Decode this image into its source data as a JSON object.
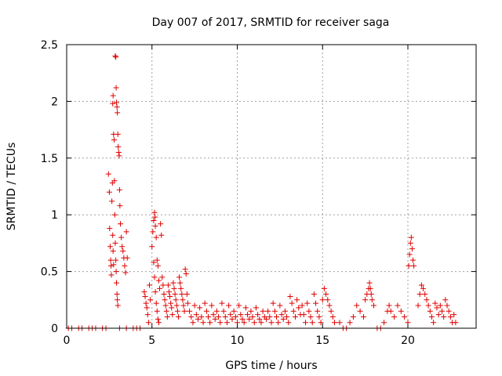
{
  "chart_data": {
    "type": "scatter",
    "title": "Day 007 of 2017, SRMTID for receiver saga",
    "xlabel": "GPS time / hours",
    "ylabel": "SRMTID / TECUs",
    "xlim": [
      0,
      24
    ],
    "ylim": [
      0,
      2.5
    ],
    "xticks": [
      0,
      5,
      10,
      15,
      20
    ],
    "yticks": [
      0,
      0.5,
      1,
      1.5,
      2,
      2.5
    ],
    "xtick_labels": [
      "0",
      "5",
      "10",
      "15",
      "20"
    ],
    "ytick_labels": [
      "0",
      "0.5",
      "1",
      "1.5",
      "2",
      "2.5"
    ],
    "grid": true,
    "marker": "plus",
    "series": [
      {
        "color": "#e00000",
        "points": [
          [
            0.1,
            0
          ],
          [
            0.3,
            0
          ],
          [
            0.7,
            0
          ],
          [
            0.9,
            0
          ],
          [
            1.3,
            0
          ],
          [
            1.5,
            0
          ],
          [
            1.7,
            0
          ],
          [
            2.1,
            0
          ],
          [
            2.3,
            0
          ],
          [
            3.1,
            0
          ],
          [
            3.5,
            0
          ],
          [
            3.9,
            0
          ],
          [
            4.1,
            0
          ],
          [
            4.3,
            0
          ],
          [
            2.45,
            1.36
          ],
          [
            2.5,
            1.2
          ],
          [
            2.52,
            0.88
          ],
          [
            2.55,
            0.72
          ],
          [
            2.58,
            0.6
          ],
          [
            2.6,
            0.55
          ],
          [
            2.62,
            0.47
          ],
          [
            2.65,
            1.12
          ],
          [
            2.68,
            1.28
          ],
          [
            2.7,
            0.82
          ],
          [
            2.72,
            0.68
          ],
          [
            2.75,
            0.56
          ],
          [
            2.7,
            1.98
          ],
          [
            2.72,
            2.05
          ],
          [
            2.75,
            1.71
          ],
          [
            2.78,
            1.66
          ],
          [
            2.8,
            1.3
          ],
          [
            2.82,
            1.0
          ],
          [
            2.85,
            0.75
          ],
          [
            2.88,
            0.6
          ],
          [
            2.9,
            0.5
          ],
          [
            2.92,
            0.4
          ],
          [
            2.95,
            0.3
          ],
          [
            2.97,
            0.25
          ],
          [
            3.0,
            0.2
          ],
          [
            2.85,
            2.4
          ],
          [
            2.88,
            2.39
          ],
          [
            2.9,
            2.12
          ],
          [
            2.92,
            1.99
          ],
          [
            2.95,
            1.95
          ],
          [
            2.97,
            1.9
          ],
          [
            3.0,
            1.71
          ],
          [
            3.02,
            1.6
          ],
          [
            3.05,
            1.55
          ],
          [
            3.08,
            1.52
          ],
          [
            3.1,
            1.22
          ],
          [
            3.12,
            1.08
          ],
          [
            3.15,
            0.92
          ],
          [
            3.2,
            0.8
          ],
          [
            3.25,
            0.72
          ],
          [
            3.3,
            0.68
          ],
          [
            3.35,
            0.62
          ],
          [
            3.4,
            0.55
          ],
          [
            3.45,
            0.49
          ],
          [
            3.5,
            0.85
          ],
          [
            3.55,
            0.62
          ],
          [
            4.55,
            0.32
          ],
          [
            4.6,
            0.28
          ],
          [
            4.65,
            0.22
          ],
          [
            4.7,
            0.18
          ],
          [
            4.75,
            0.12
          ],
          [
            4.8,
            0.05
          ],
          [
            4.85,
            0.38
          ],
          [
            4.9,
            0.25
          ],
          [
            5.0,
            0.72
          ],
          [
            5.05,
            0.85
          ],
          [
            5.1,
            0.95
          ],
          [
            5.15,
            1.02
          ],
          [
            5.18,
            0.98
          ],
          [
            5.2,
            0.9
          ],
          [
            5.25,
            0.8
          ],
          [
            5.3,
            0.6
          ],
          [
            5.35,
            0.55
          ],
          [
            5.4,
            0.42
          ],
          [
            5.45,
            0.35
          ],
          [
            5.5,
            0.92
          ],
          [
            5.55,
            0.82
          ],
          [
            5.1,
            0.58
          ],
          [
            5.15,
            0.45
          ],
          [
            5.2,
            0.32
          ],
          [
            5.25,
            0.22
          ],
          [
            5.3,
            0.15
          ],
          [
            5.35,
            0.08
          ],
          [
            5.4,
            0.05
          ],
          [
            5.6,
            0.45
          ],
          [
            5.65,
            0.38
          ],
          [
            5.7,
            0.3
          ],
          [
            5.75,
            0.25
          ],
          [
            5.8,
            0.2
          ],
          [
            5.85,
            0.15
          ],
          [
            5.9,
            0.1
          ],
          [
            5.95,
            0.38
          ],
          [
            6.0,
            0.32
          ],
          [
            6.05,
            0.28
          ],
          [
            6.1,
            0.22
          ],
          [
            6.15,
            0.18
          ],
          [
            6.2,
            0.12
          ],
          [
            6.25,
            0.4
          ],
          [
            6.3,
            0.35
          ],
          [
            6.35,
            0.3
          ],
          [
            6.4,
            0.25
          ],
          [
            6.45,
            0.2
          ],
          [
            6.5,
            0.15
          ],
          [
            6.55,
            0.1
          ],
          [
            6.6,
            0.45
          ],
          [
            6.65,
            0.4
          ],
          [
            6.7,
            0.35
          ],
          [
            6.75,
            0.3
          ],
          [
            6.8,
            0.25
          ],
          [
            6.85,
            0.2
          ],
          [
            6.9,
            0.15
          ],
          [
            6.95,
            0.52
          ],
          [
            7.0,
            0.48
          ],
          [
            7.05,
            0.3
          ],
          [
            7.1,
            0.22
          ],
          [
            7.2,
            0.15
          ],
          [
            7.3,
            0.1
          ],
          [
            7.4,
            0.05
          ],
          [
            7.5,
            0.2
          ],
          [
            7.6,
            0.12
          ],
          [
            7.7,
            0.08
          ],
          [
            7.8,
            0.18
          ],
          [
            7.9,
            0.1
          ],
          [
            8.0,
            0.05
          ],
          [
            8.1,
            0.22
          ],
          [
            8.2,
            0.15
          ],
          [
            8.3,
            0.1
          ],
          [
            8.4,
            0.05
          ],
          [
            8.5,
            0.2
          ],
          [
            8.6,
            0.12
          ],
          [
            8.7,
            0.08
          ],
          [
            8.8,
            0.15
          ],
          [
            8.9,
            0.1
          ],
          [
            9.0,
            0.05
          ],
          [
            9.1,
            0.22
          ],
          [
            9.2,
            0.15
          ],
          [
            9.3,
            0.1
          ],
          [
            9.4,
            0.05
          ],
          [
            9.5,
            0.2
          ],
          [
            9.6,
            0.12
          ],
          [
            9.7,
            0.08
          ],
          [
            9.8,
            0.15
          ],
          [
            9.9,
            0.1
          ],
          [
            10.0,
            0.05
          ],
          [
            10.1,
            0.2
          ],
          [
            10.2,
            0.12
          ],
          [
            10.3,
            0.08
          ],
          [
            10.4,
            0.05
          ],
          [
            10.5,
            0.18
          ],
          [
            10.6,
            0.12
          ],
          [
            10.7,
            0.08
          ],
          [
            10.8,
            0.15
          ],
          [
            10.9,
            0.1
          ],
          [
            11.0,
            0.05
          ],
          [
            11.1,
            0.18
          ],
          [
            11.2,
            0.12
          ],
          [
            11.3,
            0.08
          ],
          [
            11.4,
            0.05
          ],
          [
            11.5,
            0.15
          ],
          [
            11.6,
            0.1
          ],
          [
            11.7,
            0.08
          ],
          [
            11.8,
            0.15
          ],
          [
            11.9,
            0.1
          ],
          [
            12.0,
            0.05
          ],
          [
            12.1,
            0.22
          ],
          [
            12.2,
            0.15
          ],
          [
            12.3,
            0.1
          ],
          [
            12.4,
            0.05
          ],
          [
            12.5,
            0.2
          ],
          [
            12.6,
            0.12
          ],
          [
            12.7,
            0.08
          ],
          [
            12.8,
            0.15
          ],
          [
            12.9,
            0.1
          ],
          [
            13.0,
            0.05
          ],
          [
            13.1,
            0.28
          ],
          [
            13.2,
            0.22
          ],
          [
            13.3,
            0.15
          ],
          [
            13.4,
            0.1
          ],
          [
            13.5,
            0.25
          ],
          [
            13.6,
            0.18
          ],
          [
            13.7,
            0.12
          ],
          [
            13.8,
            0.2
          ],
          [
            13.9,
            0.12
          ],
          [
            14.0,
            0.05
          ],
          [
            14.1,
            0.22
          ],
          [
            14.2,
            0.15
          ],
          [
            14.3,
            0.1
          ],
          [
            14.4,
            0.05
          ],
          [
            14.5,
            0.3
          ],
          [
            14.6,
            0.22
          ],
          [
            14.7,
            0.15
          ],
          [
            14.8,
            0.1
          ],
          [
            14.9,
            0.05
          ],
          [
            15.0,
            0.25
          ],
          [
            15.1,
            0.35
          ],
          [
            15.2,
            0.3
          ],
          [
            15.3,
            0.25
          ],
          [
            15.4,
            0.2
          ],
          [
            15.5,
            0.15
          ],
          [
            15.6,
            0.1
          ],
          [
            15.7,
            0.05
          ],
          [
            16.0,
            0.05
          ],
          [
            16.2,
            0
          ],
          [
            16.4,
            0
          ],
          [
            16.6,
            0.05
          ],
          [
            16.8,
            0.1
          ],
          [
            17.0,
            0.2
          ],
          [
            17.2,
            0.15
          ],
          [
            17.4,
            0.1
          ],
          [
            17.5,
            0.25
          ],
          [
            17.6,
            0.3
          ],
          [
            17.7,
            0.35
          ],
          [
            17.75,
            0.4
          ],
          [
            17.8,
            0.35
          ],
          [
            17.85,
            0.3
          ],
          [
            17.9,
            0.25
          ],
          [
            18.0,
            0.2
          ],
          [
            18.2,
            0
          ],
          [
            18.4,
            0
          ],
          [
            18.6,
            0.05
          ],
          [
            18.8,
            0.15
          ],
          [
            18.9,
            0.2
          ],
          [
            19.0,
            0.15
          ],
          [
            19.2,
            0.1
          ],
          [
            19.4,
            0.2
          ],
          [
            19.6,
            0.15
          ],
          [
            19.8,
            0.1
          ],
          [
            20.0,
            0.05
          ],
          [
            20.05,
            0.55
          ],
          [
            20.1,
            0.65
          ],
          [
            20.15,
            0.75
          ],
          [
            20.2,
            0.8
          ],
          [
            20.25,
            0.7
          ],
          [
            20.3,
            0.6
          ],
          [
            20.35,
            0.55
          ],
          [
            20.6,
            0.2
          ],
          [
            20.7,
            0.3
          ],
          [
            20.8,
            0.38
          ],
          [
            20.9,
            0.35
          ],
          [
            21.0,
            0.3
          ],
          [
            21.1,
            0.25
          ],
          [
            21.2,
            0.2
          ],
          [
            21.3,
            0.15
          ],
          [
            21.4,
            0.1
          ],
          [
            21.5,
            0.05
          ],
          [
            21.6,
            0.22
          ],
          [
            21.7,
            0.18
          ],
          [
            21.8,
            0.12
          ],
          [
            21.9,
            0.2
          ],
          [
            22.0,
            0.15
          ],
          [
            22.1,
            0.1
          ],
          [
            22.2,
            0.25
          ],
          [
            22.3,
            0.2
          ],
          [
            22.4,
            0.15
          ],
          [
            22.5,
            0.1
          ],
          [
            22.6,
            0.05
          ],
          [
            22.7,
            0.12
          ],
          [
            22.8,
            0.05
          ]
        ]
      }
    ]
  }
}
